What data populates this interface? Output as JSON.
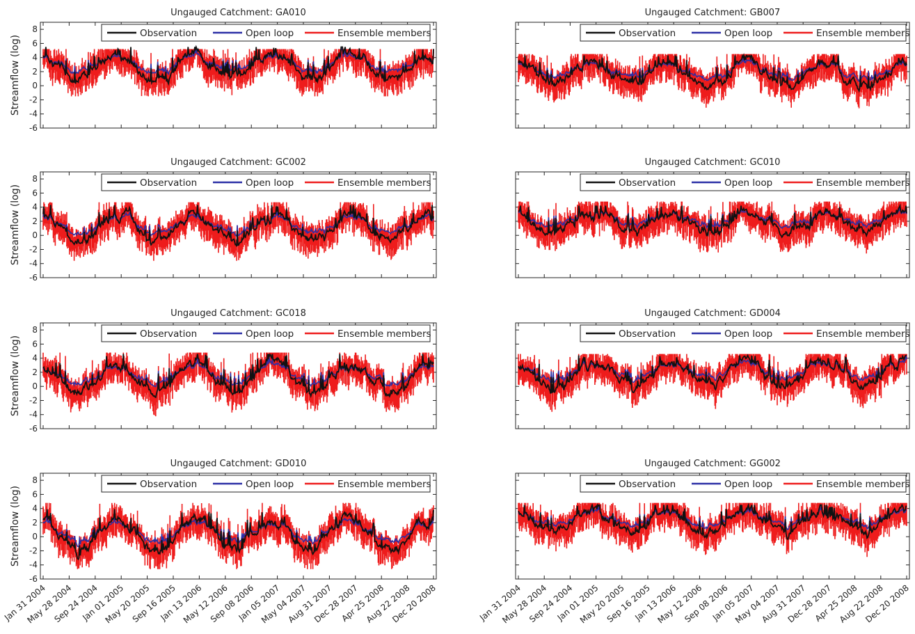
{
  "figure": {
    "ylabel": "Streamflow (log)",
    "yticks": [
      8,
      6,
      4,
      2,
      0,
      -2,
      -4,
      -6
    ],
    "xticks": [
      "Jan 31 2004",
      "May 28 2004",
      "Sep 24 2004",
      "Jan 01 2005",
      "May 20 2005",
      "Sep 16 2005",
      "Jan 13 2006",
      "May 12 2006",
      "Sep 08 2006",
      "Jan 05 2007",
      "May 04 2007",
      "Aug 31 2007",
      "Dec 28 2007",
      "Apr 25 2008",
      "Aug 22 2008",
      "Dec 20 2008"
    ],
    "legend": {
      "observation": "Observation",
      "open_loop": "Open loop",
      "ensemble": "Ensemble members"
    },
    "colors": {
      "observation": "#111111",
      "open_loop": "#2b2fa6",
      "ensemble": "#ee1c1c"
    }
  },
  "chart_data": [
    {
      "type": "line",
      "title": "Ungauged Catchment: GA010",
      "ylabel": "Streamflow (log)",
      "ylim": [
        -6,
        9
      ],
      "x_range": [
        "2004-01-31",
        "2008-12-20"
      ],
      "series": [
        {
          "name": "Observation"
        },
        {
          "name": "Open loop"
        },
        {
          "name": "Ensemble members"
        }
      ],
      "approx": {
        "obs_min": -0.5,
        "obs_max": 5.5,
        "ens_min": -1.5,
        "ens_max": 5.2
      }
    },
    {
      "type": "line",
      "title": "Ungauged Catchment: GB007",
      "ylim": [
        -6,
        9
      ],
      "x_range": [
        "2004-01-31",
        "2008-12-20"
      ],
      "series": [
        {
          "name": "Observation"
        },
        {
          "name": "Open loop"
        },
        {
          "name": "Ensemble members"
        }
      ],
      "approx": {
        "obs_min": -1.3,
        "obs_max": 4.3,
        "ens_min": -3.2,
        "ens_max": 4.5
      }
    },
    {
      "type": "line",
      "title": "Ungauged Catchment: GC002",
      "ylabel": "Streamflow (log)",
      "ylim": [
        -6,
        9
      ],
      "x_range": [
        "2004-01-31",
        "2008-12-20"
      ],
      "series": [
        {
          "name": "Observation"
        },
        {
          "name": "Open loop"
        },
        {
          "name": "Ensemble members"
        }
      ],
      "approx": {
        "obs_min": -2.7,
        "obs_max": 4.3,
        "ens_min": -3.6,
        "ens_max": 4.7
      }
    },
    {
      "type": "line",
      "title": "Ungauged Catchment: GC010",
      "ylim": [
        -6,
        9
      ],
      "x_range": [
        "2004-01-31",
        "2008-12-20"
      ],
      "series": [
        {
          "name": "Observation"
        },
        {
          "name": "Open loop"
        },
        {
          "name": "Ensemble members"
        }
      ],
      "approx": {
        "obs_min": -0.8,
        "obs_max": 4.2,
        "ens_min": -4.3,
        "ens_max": 4.8
      }
    },
    {
      "type": "line",
      "title": "Ungauged Catchment: GC018",
      "ylabel": "Streamflow (log)",
      "ylim": [
        -6,
        9
      ],
      "x_range": [
        "2004-01-31",
        "2008-12-20"
      ],
      "series": [
        {
          "name": "Observation"
        },
        {
          "name": "Open loop"
        },
        {
          "name": "Ensemble members"
        }
      ],
      "approx": {
        "obs_min": -2.6,
        "obs_max": 4.6,
        "ens_min": -4.4,
        "ens_max": 4.8
      }
    },
    {
      "type": "line",
      "title": "Ungauged Catchment: GD004",
      "ylim": [
        -6,
        9
      ],
      "x_range": [
        "2004-01-31",
        "2008-12-20"
      ],
      "series": [
        {
          "name": "Observation"
        },
        {
          "name": "Open loop"
        },
        {
          "name": "Ensemble members"
        }
      ],
      "approx": {
        "obs_min": -1.3,
        "obs_max": 4.4,
        "ens_min": -4.6,
        "ens_max": 4.6
      }
    },
    {
      "type": "line",
      "title": "Ungauged Catchment: GD010",
      "ylabel": "Streamflow (log)",
      "ylim": [
        -6,
        9
      ],
      "x_range": [
        "2004-01-31",
        "2008-12-20"
      ],
      "series": [
        {
          "name": "Observation"
        },
        {
          "name": "Open loop"
        },
        {
          "name": "Ensemble members"
        }
      ],
      "approx": {
        "obs_min": -3.8,
        "obs_max": 3.9,
        "ens_min": -4.6,
        "ens_max": 4.8
      }
    },
    {
      "type": "line",
      "title": "Ungauged Catchment: GG002",
      "ylim": [
        -6,
        9
      ],
      "x_range": [
        "2004-01-31",
        "2008-12-20"
      ],
      "series": [
        {
          "name": "Observation"
        },
        {
          "name": "Open loop"
        },
        {
          "name": "Ensemble members"
        }
      ],
      "approx": {
        "obs_min": -0.8,
        "obs_max": 4.5,
        "ens_min": -3.1,
        "ens_max": 4.8
      }
    }
  ]
}
